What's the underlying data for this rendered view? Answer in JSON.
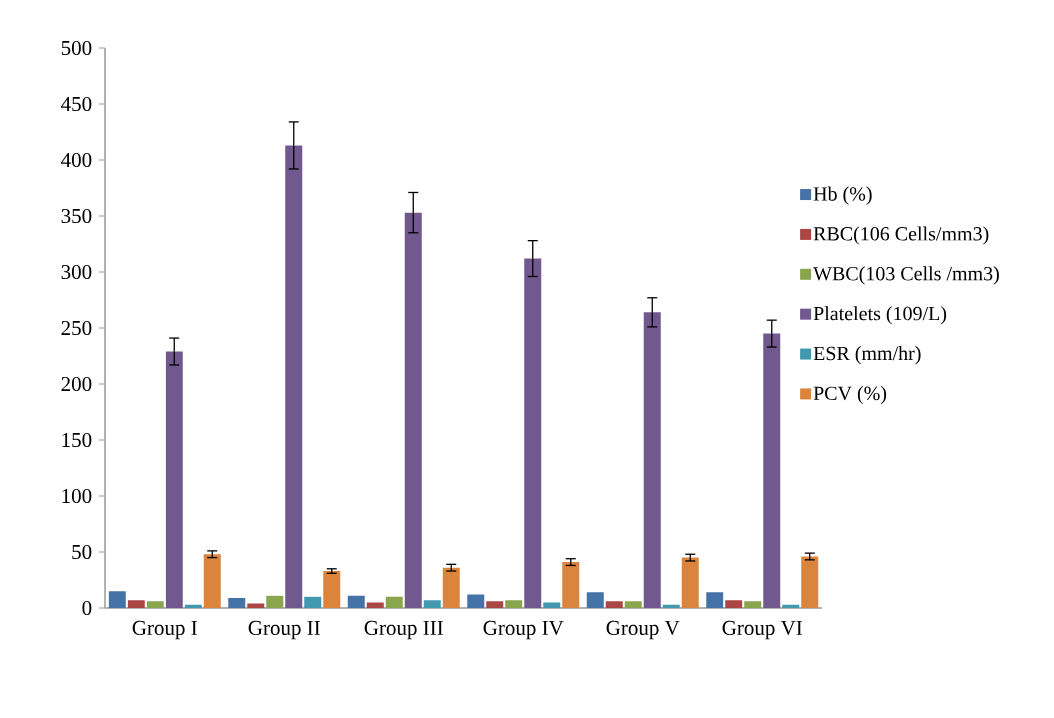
{
  "chart_data": {
    "type": "bar",
    "categories": [
      "Group I",
      "Group II",
      "Group III",
      "Group IV",
      "Group V",
      "Group VI"
    ],
    "series": [
      {
        "name": "Hb (%)",
        "color": "#4572a7",
        "values": [
          15,
          9,
          11,
          12,
          14,
          14
        ]
      },
      {
        "name": "RBC(106 Cells/mm3)",
        "color": "#aa4643",
        "values": [
          7,
          4,
          5,
          6,
          6,
          7
        ]
      },
      {
        "name": "WBC(103 Cells /mm3)",
        "color": "#89a54e",
        "values": [
          6,
          11,
          10,
          7,
          6,
          6
        ]
      },
      {
        "name": "Platelets (109/L)",
        "color": "#71588f",
        "values": [
          229,
          413,
          353,
          312,
          264,
          245
        ],
        "errors": [
          12,
          21,
          18,
          16,
          13,
          12
        ]
      },
      {
        "name": "ESR (mm/hr)",
        "color": "#4198af",
        "values": [
          3,
          10,
          7,
          5,
          3,
          3
        ]
      },
      {
        "name": "PCV (%)",
        "color": "#db843d",
        "values": [
          48,
          33,
          36,
          41,
          45,
          46
        ],
        "errors": [
          3,
          2,
          3,
          3,
          3,
          3
        ]
      }
    ],
    "ylim": [
      0,
      500
    ],
    "yticks": [
      0,
      50,
      100,
      150,
      200,
      250,
      300,
      350,
      400,
      450,
      500
    ],
    "grid": false,
    "legend": "right"
  }
}
